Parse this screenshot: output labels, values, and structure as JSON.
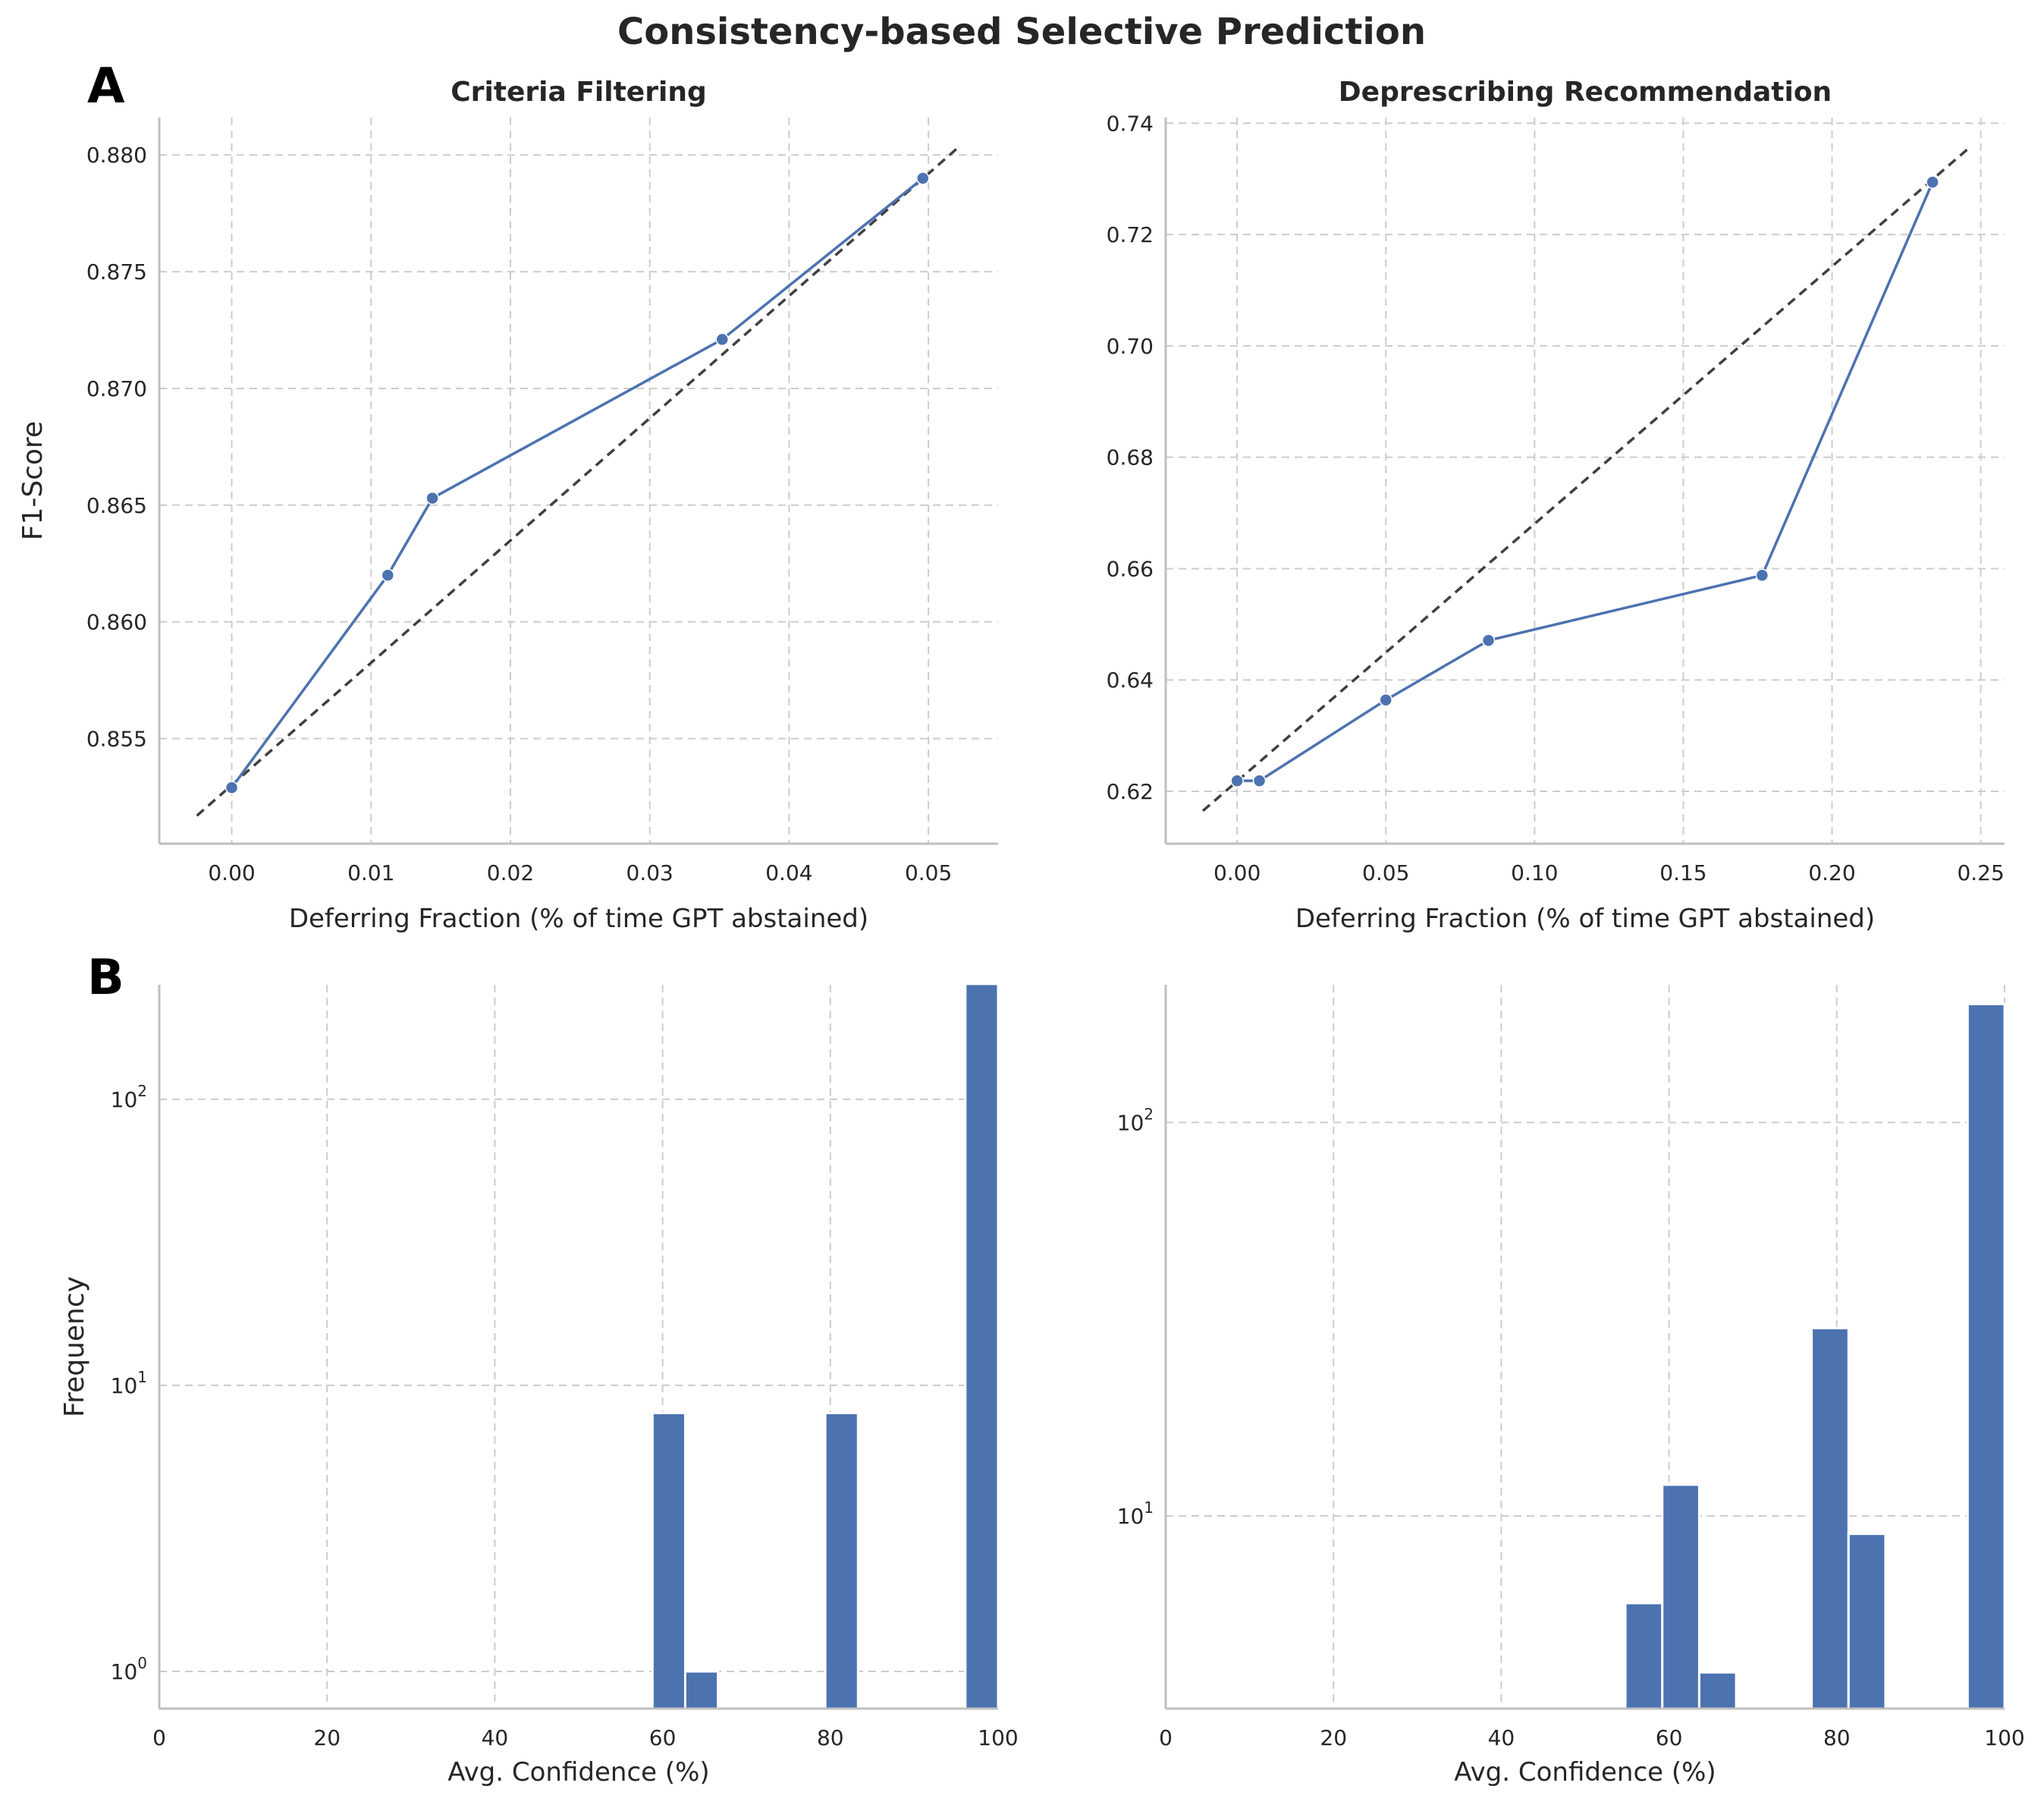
{
  "figure": {
    "title": "Consistency-based Selective Prediction",
    "panel_labels": [
      "A",
      "B"
    ]
  },
  "colors": {
    "series": "#4c72b0",
    "diagonal": "#404040",
    "grid": "#cccccc",
    "axis": "#bfbfbf",
    "text": "#262626"
  },
  "chart_data": [
    {
      "type": "line",
      "title": "Criteria Filtering",
      "xlabel": "Deferring Fraction (% of time GPT abstained)",
      "ylabel": "F1-Score",
      "xlim": [
        -0.0052,
        0.055
      ],
      "ylim": [
        0.8505,
        0.8816
      ],
      "xticks": [
        0.0,
        0.01,
        0.02,
        0.03,
        0.04,
        0.05
      ],
      "xtick_labels": [
        "0.00",
        "0.01",
        "0.02",
        "0.03",
        "0.04",
        "0.05"
      ],
      "yticks": [
        0.855,
        0.86,
        0.865,
        0.87,
        0.875,
        0.88
      ],
      "ytick_labels": [
        "0.855",
        "0.860",
        "0.865",
        "0.870",
        "0.875",
        "0.880"
      ],
      "grid": true,
      "series": [
        {
          "values_x": [
            0.0,
            0.0112,
            0.0144,
            0.0352,
            0.0496
          ],
          "values_y": [
            0.8529,
            0.862,
            0.8653,
            0.8721,
            0.879
          ]
        }
      ],
      "reference_line": {
        "style": "dashed",
        "x": [
          -0.0025,
          0.0521
        ],
        "y": [
          0.8517,
          0.8803
        ]
      }
    },
    {
      "type": "line",
      "title": "Deprescribing Recommendation",
      "xlabel": "Deferring Fraction (% of time GPT abstained)",
      "ylabel": "",
      "xlim": [
        -0.024,
        0.258
      ],
      "ylim": [
        0.6106,
        0.741
      ],
      "xticks": [
        0.0,
        0.05,
        0.1,
        0.15,
        0.2,
        0.25
      ],
      "xtick_labels": [
        "0.00",
        "0.05",
        "0.10",
        "0.15",
        "0.20",
        "0.25"
      ],
      "yticks": [
        0.62,
        0.64,
        0.66,
        0.68,
        0.7,
        0.72,
        0.74
      ],
      "ytick_labels": [
        "0.62",
        "0.64",
        "0.66",
        "0.68",
        "0.70",
        "0.72",
        "0.74"
      ],
      "grid": true,
      "series": [
        {
          "values_x": [
            0.0,
            0.0075,
            0.05,
            0.0845,
            0.1765,
            0.2338
          ],
          "values_y": [
            0.6219,
            0.6219,
            0.6364,
            0.6471,
            0.6588,
            0.7294
          ]
        }
      ],
      "reference_line": {
        "style": "dashed",
        "x": [
          -0.0115,
          0.2455
        ],
        "y": [
          0.6165,
          0.7353
        ]
      }
    },
    {
      "type": "bar",
      "subtype": "histogram",
      "yscale": "log",
      "title": "",
      "xlabel": "Avg. Confidence (%)",
      "ylabel": "Frequency",
      "xlim": [
        0,
        100
      ],
      "ylim_log10": [
        -0.13,
        2.4
      ],
      "xticks": [
        0,
        20,
        40,
        60,
        80,
        100
      ],
      "xtick_labels": [
        "0",
        "20",
        "40",
        "60",
        "80",
        "100"
      ],
      "yticks": [
        1,
        10,
        100
      ],
      "ytick_labels": [
        {
          "base": "10",
          "exp": "0"
        },
        {
          "base": "10",
          "exp": "1"
        },
        {
          "base": "10",
          "exp": "2"
        }
      ],
      "grid": true,
      "bins": [
        {
          "x0": 58.8,
          "x1": 62.7,
          "value": 8
        },
        {
          "x0": 62.7,
          "x1": 66.6,
          "value": 1
        },
        {
          "x0": 79.4,
          "x1": 83.3,
          "value": 8
        },
        {
          "x0": 96.1,
          "x1": 100.0,
          "value": 253
        }
      ]
    },
    {
      "type": "bar",
      "subtype": "histogram",
      "yscale": "log",
      "title": "",
      "xlabel": "Avg. Confidence (%)",
      "ylabel": "",
      "xlim": [
        0,
        100
      ],
      "ylim_log10": [
        0.51,
        2.35
      ],
      "xticks": [
        0,
        20,
        40,
        60,
        80,
        100
      ],
      "xtick_labels": [
        "0",
        "20",
        "40",
        "60",
        "80",
        "100"
      ],
      "yticks": [
        10,
        100
      ],
      "ytick_labels": [
        {
          "base": "10",
          "exp": "1"
        },
        {
          "base": "10",
          "exp": "2"
        }
      ],
      "grid": true,
      "bins": [
        {
          "x0": 54.8,
          "x1": 59.2,
          "value": 6
        },
        {
          "x0": 59.2,
          "x1": 63.6,
          "value": 12
        },
        {
          "x0": 63.6,
          "x1": 68.0,
          "value": 4
        },
        {
          "x0": 77.0,
          "x1": 81.4,
          "value": 30
        },
        {
          "x0": 81.4,
          "x1": 85.8,
          "value": 9
        },
        {
          "x0": 95.6,
          "x1": 100.0,
          "value": 200
        }
      ]
    }
  ]
}
